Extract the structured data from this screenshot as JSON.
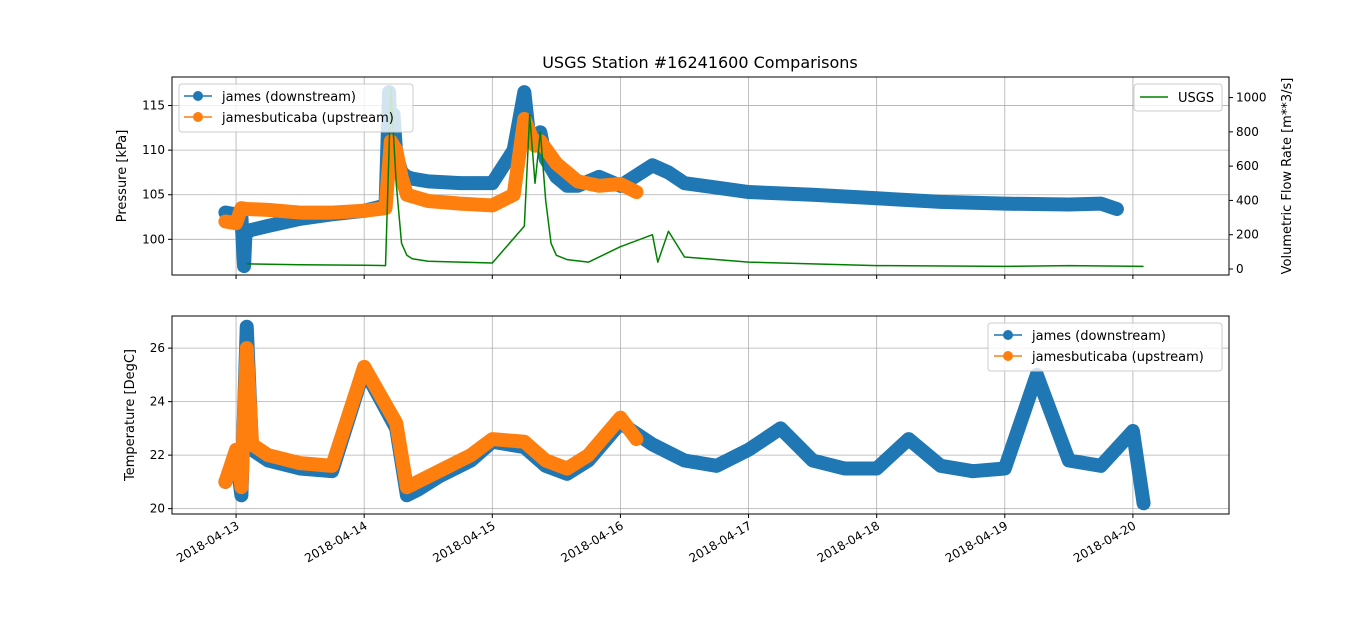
{
  "chart_data": [
    {
      "type": "line",
      "title": "USGS Station #16241600 Comparisons",
      "xlabel": "",
      "ylabel": "Pressure [kPa]",
      "ylim": [
        96.0,
        118.2
      ],
      "yticks": [
        100,
        105,
        110,
        115
      ],
      "y2label": "Volumetric Flow Rate [m**3/s]",
      "y2lim": [
        -35,
        1120
      ],
      "y2ticks": [
        0,
        200,
        400,
        600,
        800,
        1000
      ],
      "xlim": [
        "2018-04-12 12:00",
        "2018-04-20 18:00"
      ],
      "grid": true,
      "legend_left": "top-left",
      "legend_right": "top-right",
      "series": [
        {
          "name": "james (downstream)",
          "axis": "left",
          "color": "#1f77b4",
          "marker": "circle",
          "x": [
            "2018-04-12 22:00",
            "2018-04-13 00:00",
            "2018-04-13 01:00",
            "2018-04-13 01:30",
            "2018-04-13 01:45",
            "2018-04-13 02:30",
            "2018-04-13 06:00",
            "2018-04-13 12:00",
            "2018-04-13 18:00",
            "2018-04-14 00:00",
            "2018-04-14 04:00",
            "2018-04-14 04:40",
            "2018-04-14 05:00",
            "2018-04-14 05:30",
            "2018-04-14 06:00",
            "2018-04-14 07:00",
            "2018-04-14 08:00",
            "2018-04-14 09:00",
            "2018-04-14 12:00",
            "2018-04-14 18:00",
            "2018-04-15 00:00",
            "2018-04-15 04:00",
            "2018-04-15 06:00",
            "2018-04-15 07:00",
            "2018-04-15 09:00",
            "2018-04-15 10:00",
            "2018-04-15 12:00",
            "2018-04-15 14:00",
            "2018-04-15 16:00",
            "2018-04-15 20:00",
            "2018-04-16 00:00",
            "2018-04-16 06:00",
            "2018-04-16 09:00",
            "2018-04-16 12:00",
            "2018-04-16 18:00",
            "2018-04-17 00:00",
            "2018-04-17 12:00",
            "2018-04-18 00:00",
            "2018-04-18 12:00",
            "2018-04-19 00:00",
            "2018-04-19 12:00",
            "2018-04-19 18:00",
            "2018-04-19 21:00"
          ],
          "y": [
            103.0,
            102.8,
            102.5,
            97.0,
            100.5,
            101.0,
            101.5,
            102.3,
            102.8,
            103.2,
            103.8,
            116.5,
            110.0,
            114.0,
            109.5,
            107.5,
            107.0,
            106.8,
            106.5,
            106.3,
            106.3,
            110.0,
            116.5,
            111.0,
            112.0,
            109.0,
            107.0,
            106.0,
            106.0,
            107.0,
            106.0,
            108.3,
            107.5,
            106.3,
            105.8,
            105.3,
            105.0,
            104.6,
            104.2,
            104.0,
            103.9,
            104.0,
            103.4
          ]
        },
        {
          "name": "jamesbuticaba (upstream)",
          "axis": "left",
          "color": "#ff7f0e",
          "marker": "circle",
          "x": [
            "2018-04-12 22:00",
            "2018-04-13 00:00",
            "2018-04-13 01:00",
            "2018-04-13 02:00",
            "2018-04-13 06:00",
            "2018-04-13 12:00",
            "2018-04-13 18:00",
            "2018-04-14 00:00",
            "2018-04-14 04:00",
            "2018-04-14 05:00",
            "2018-04-14 06:00",
            "2018-04-14 07:00",
            "2018-04-14 08:00",
            "2018-04-14 12:00",
            "2018-04-14 18:00",
            "2018-04-15 00:00",
            "2018-04-15 04:00",
            "2018-04-15 06:00",
            "2018-04-15 08:00",
            "2018-04-15 09:00",
            "2018-04-15 12:00",
            "2018-04-15 16:00",
            "2018-04-15 20:00",
            "2018-04-16 00:00",
            "2018-04-16 03:00"
          ],
          "y": [
            102.0,
            101.8,
            103.5,
            103.4,
            103.3,
            103.0,
            103.0,
            103.2,
            103.5,
            111.0,
            110.0,
            107.0,
            105.0,
            104.3,
            104.0,
            103.8,
            105.0,
            113.5,
            110.5,
            111.0,
            108.5,
            106.5,
            106.0,
            106.2,
            105.3
          ]
        },
        {
          "name": "USGS",
          "axis": "right",
          "color": "#008000",
          "marker": "none",
          "x": [
            "2018-04-13 02:00",
            "2018-04-13 12:00",
            "2018-04-14 00:00",
            "2018-04-14 04:00",
            "2018-04-14 05:00",
            "2018-04-14 06:00",
            "2018-04-14 07:00",
            "2018-04-14 08:00",
            "2018-04-14 09:00",
            "2018-04-14 12:00",
            "2018-04-14 18:00",
            "2018-04-15 00:00",
            "2018-04-15 06:00",
            "2018-04-15 07:00",
            "2018-04-15 08:00",
            "2018-04-15 09:00",
            "2018-04-15 10:00",
            "2018-04-15 11:00",
            "2018-04-15 12:00",
            "2018-04-15 14:00",
            "2018-04-15 18:00",
            "2018-04-16 00:00",
            "2018-04-16 06:00",
            "2018-04-16 07:00",
            "2018-04-16 09:00",
            "2018-04-16 12:00",
            "2018-04-17 00:00",
            "2018-04-18 00:00",
            "2018-04-19 00:00",
            "2018-04-19 12:00",
            "2018-04-20 02:00"
          ],
          "y": [
            30,
            25,
            22,
            20,
            1050,
            500,
            150,
            80,
            60,
            45,
            40,
            35,
            250,
            900,
            500,
            800,
            400,
            150,
            80,
            55,
            40,
            130,
            200,
            40,
            220,
            70,
            40,
            20,
            15,
            20,
            15
          ]
        }
      ]
    },
    {
      "type": "line",
      "title": "",
      "xlabel": "",
      "ylabel": "Temperature [DegC]",
      "ylim": [
        19.8,
        27.2
      ],
      "yticks": [
        20,
        22,
        24,
        26
      ],
      "xlim": [
        "2018-04-12 12:00",
        "2018-04-20 18:00"
      ],
      "xticks": [
        "2018-04-13",
        "2018-04-14",
        "2018-04-15",
        "2018-04-16",
        "2018-04-17",
        "2018-04-18",
        "2018-04-19",
        "2018-04-20"
      ],
      "grid": true,
      "legend": "top-right",
      "series": [
        {
          "name": "james (downstream)",
          "color": "#1f77b4",
          "marker": "circle",
          "x": [
            "2018-04-12 22:00",
            "2018-04-13 00:00",
            "2018-04-13 01:00",
            "2018-04-13 02:00",
            "2018-04-13 03:00",
            "2018-04-13 06:00",
            "2018-04-13 12:00",
            "2018-04-13 18:00",
            "2018-04-14 00:00",
            "2018-04-14 06:00",
            "2018-04-14 08:00",
            "2018-04-14 10:00",
            "2018-04-14 14:00",
            "2018-04-14 20:00",
            "2018-04-15 00:00",
            "2018-04-15 06:00",
            "2018-04-15 10:00",
            "2018-04-15 14:00",
            "2018-04-15 18:00",
            "2018-04-16 00:00",
            "2018-04-16 06:00",
            "2018-04-16 12:00",
            "2018-04-16 18:00",
            "2018-04-17 00:00",
            "2018-04-17 06:00",
            "2018-04-17 12:00",
            "2018-04-17 18:00",
            "2018-04-18 00:00",
            "2018-04-18 06:00",
            "2018-04-18 12:00",
            "2018-04-18 18:00",
            "2018-04-19 00:00",
            "2018-04-19 06:00",
            "2018-04-19 12:00",
            "2018-04-19 18:00",
            "2018-04-20 00:00",
            "2018-04-20 02:00"
          ],
          "y": [
            21.0,
            22.0,
            20.5,
            26.8,
            22.2,
            21.8,
            21.5,
            21.4,
            25.2,
            23.0,
            20.5,
            20.7,
            21.2,
            21.8,
            22.5,
            22.3,
            21.6,
            21.3,
            21.8,
            23.2,
            22.4,
            21.8,
            21.6,
            22.2,
            23.0,
            21.8,
            21.5,
            21.5,
            22.6,
            21.6,
            21.4,
            21.5,
            25.0,
            21.8,
            21.6,
            22.9,
            20.2
          ]
        },
        {
          "name": "jamesbuticaba (upstream)",
          "color": "#ff7f0e",
          "marker": "circle",
          "x": [
            "2018-04-12 22:00",
            "2018-04-13 00:00",
            "2018-04-13 01:00",
            "2018-04-13 02:00",
            "2018-04-13 03:00",
            "2018-04-13 06:00",
            "2018-04-13 12:00",
            "2018-04-13 18:00",
            "2018-04-14 00:00",
            "2018-04-14 06:00",
            "2018-04-14 08:00",
            "2018-04-14 10:00",
            "2018-04-14 14:00",
            "2018-04-14 20:00",
            "2018-04-15 00:00",
            "2018-04-15 06:00",
            "2018-04-15 10:00",
            "2018-04-15 14:00",
            "2018-04-15 18:00",
            "2018-04-16 00:00",
            "2018-04-16 03:00"
          ],
          "y": [
            21.0,
            22.2,
            20.8,
            26.0,
            22.4,
            22.0,
            21.7,
            21.6,
            25.3,
            23.2,
            20.8,
            21.0,
            21.4,
            22.0,
            22.6,
            22.5,
            21.8,
            21.5,
            22.0,
            23.4,
            22.6
          ]
        }
      ]
    }
  ]
}
